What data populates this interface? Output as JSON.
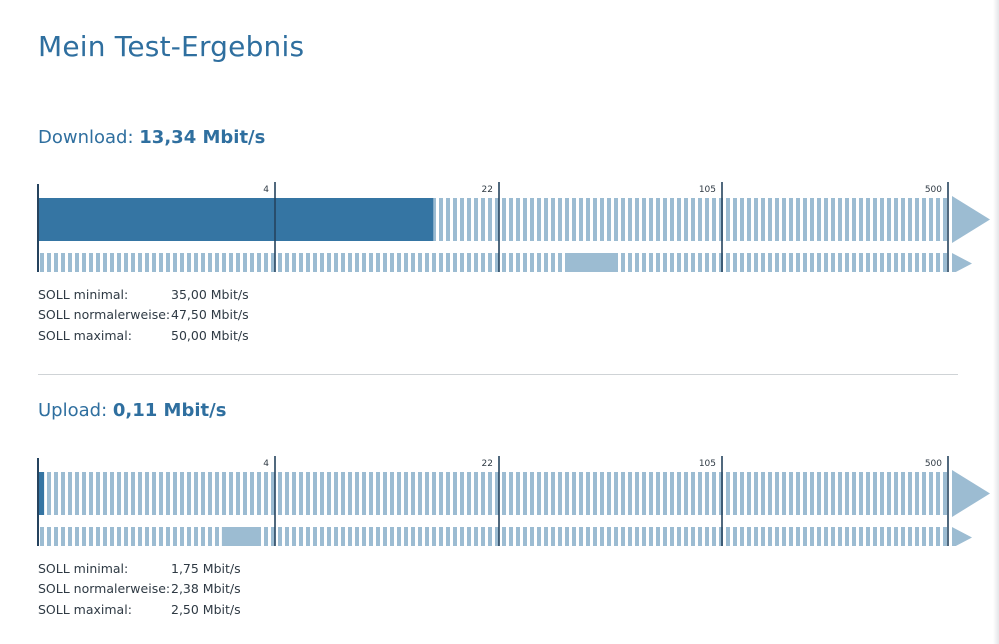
{
  "page": {
    "title": "Mein Test-Ergebnis"
  },
  "colors": {
    "primary": "#3575a3",
    "light": "#9cbcd2",
    "heading": "#2f6f9f",
    "axis": "#25435e"
  },
  "download": {
    "label": "Download:",
    "value": "13,34 Mbit/s",
    "soll_rows": [
      {
        "label": "SOLL minimal:",
        "value": "35,00 Mbit/s"
      },
      {
        "label": "SOLL normalerweise:",
        "value": "47,50 Mbit/s"
      },
      {
        "label": "SOLL maximal:",
        "value": "50,00 Mbit/s"
      }
    ]
  },
  "upload": {
    "label": "Upload:",
    "value": "0,11 Mbit/s",
    "soll_rows": [
      {
        "label": "SOLL minimal:",
        "value": "1,75 Mbit/s"
      },
      {
        "label": "SOLL normalerweise:",
        "value": "2,38 Mbit/s"
      },
      {
        "label": "SOLL maximal:",
        "value": "2,50 Mbit/s"
      }
    ]
  },
  "chart_data": [
    {
      "type": "bar",
      "scale": "piecewise-log",
      "ticks": [
        "4",
        "22",
        "105",
        "500"
      ],
      "unit": "Mbit/s",
      "measured": 13.34,
      "soll": {
        "minimal": 35.0,
        "normal": 47.5,
        "maximal": 50.0
      }
    },
    {
      "type": "bar",
      "scale": "piecewise-log",
      "ticks": [
        "4",
        "22",
        "105",
        "500"
      ],
      "unit": "Mbit/s",
      "measured": 0.11,
      "soll": {
        "minimal": 1.75,
        "normal": 2.38,
        "maximal": 2.5
      }
    }
  ]
}
